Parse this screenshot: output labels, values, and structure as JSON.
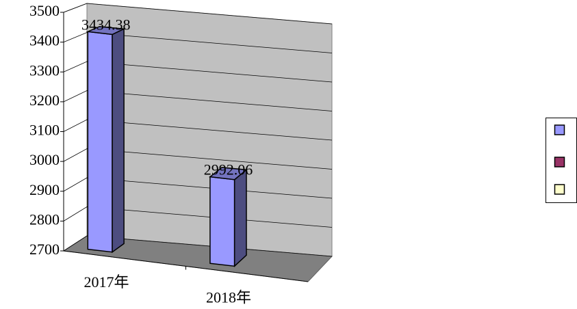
{
  "chart_data": {
    "type": "bar3d",
    "categories": [
      "2017年",
      "2018年"
    ],
    "values": [
      3434.38,
      2992.06
    ],
    "color": "#9999ff",
    "ylim": [
      2700,
      3500
    ],
    "yticks": [
      2700,
      2800,
      2900,
      3000,
      3100,
      3200,
      3300,
      3400,
      3500
    ],
    "grid": true,
    "legend_colors": [
      "#9999ff",
      "#993366",
      "#ffffcc"
    ]
  }
}
